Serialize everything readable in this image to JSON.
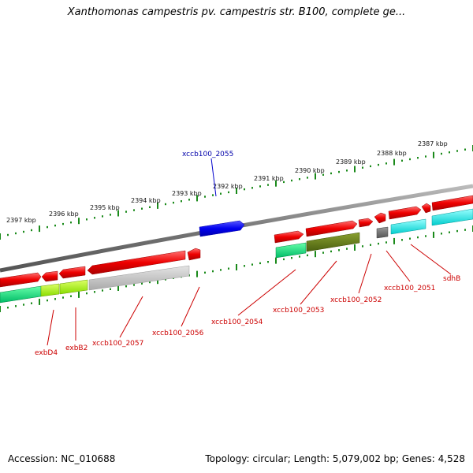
{
  "title": "Xanthomonas campestris pv. campestris str. B100, complete ge...",
  "accession": "Accession: NC_010688",
  "stats": "Topology: circular; Length: 5,079,002 bp; Genes: 4,528",
  "colors": {
    "backbone": "#7a7a7a",
    "tick": "#1a8a1a",
    "gene_label": "#cc0000",
    "highlight_label": "#0000aa",
    "highlight_gene": "#0000ee"
  },
  "scale_labels": [
    {
      "text": "2397 kbp"
    },
    {
      "text": "2396 kbp"
    },
    {
      "text": "2395 kbp"
    },
    {
      "text": "2394 kbp"
    },
    {
      "text": "2393 kbp"
    },
    {
      "text": "2392 kbp"
    },
    {
      "text": "2391 kbp"
    },
    {
      "text": "2390 kbp"
    },
    {
      "text": "2389 kbp"
    },
    {
      "text": "2388 kbp"
    },
    {
      "text": "2387 kbp"
    }
  ],
  "highlighted_gene": {
    "label": "xccb100_2055"
  },
  "gene_labels": [
    {
      "text": "exbD4"
    },
    {
      "text": "exbB2"
    },
    {
      "text": "xccb100_2057"
    },
    {
      "text": "xccb100_2056"
    },
    {
      "text": "xccb100_2054"
    },
    {
      "text": "xccb100_2053"
    },
    {
      "text": "xccb100_2052"
    },
    {
      "text": "xccb100_2051"
    },
    {
      "text": "sdhB"
    }
  ]
}
